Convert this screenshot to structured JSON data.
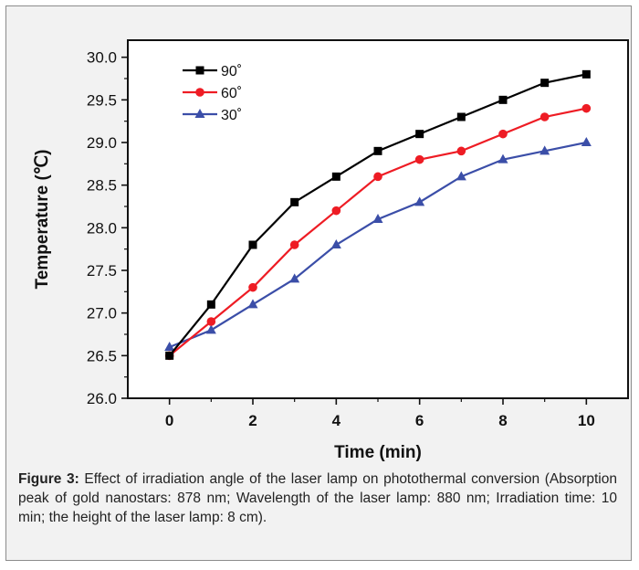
{
  "caption": {
    "label": "Figure 3:",
    "text": " Effect of irradiation angle of the laser lamp on photothermal conversion (Absorption peak of gold nanostars: 878 nm; Wavelength of the laser lamp: 880 nm; Irradiation time: 10 min; the height of the laser lamp: 8 cm)."
  },
  "chart_data": {
    "type": "line",
    "xlabel": "Time (min)",
    "ylabel": "Temperature (℃)",
    "xlim": [
      -1,
      11
    ],
    "ylim": [
      26.0,
      30.2
    ],
    "x_ticks": [
      0,
      2,
      4,
      6,
      8,
      10
    ],
    "y_ticks": [
      26.0,
      26.5,
      27.0,
      27.5,
      28.0,
      28.5,
      29.0,
      29.5,
      30.0
    ],
    "x_tick_labels": [
      "0",
      "2",
      "4",
      "6",
      "8",
      "10"
    ],
    "y_tick_labels": [
      "26.0",
      "26.5",
      "27.0",
      "27.5",
      "28.0",
      "28.5",
      "29.0",
      "29.5",
      "30.0"
    ],
    "legend_position": "top-left",
    "grid": false,
    "x": [
      0,
      1,
      2,
      3,
      4,
      5,
      6,
      7,
      8,
      9,
      10
    ],
    "series": [
      {
        "name": "90˚",
        "color": "#000000",
        "marker": "square",
        "values": [
          26.5,
          27.1,
          27.8,
          28.3,
          28.6,
          28.9,
          29.1,
          29.3,
          29.5,
          29.7,
          29.8
        ]
      },
      {
        "name": "60˚",
        "color": "#ee1c24",
        "marker": "circle",
        "values": [
          26.5,
          26.9,
          27.3,
          27.8,
          28.2,
          28.6,
          28.8,
          28.9,
          29.1,
          29.3,
          29.4
        ]
      },
      {
        "name": "30˚",
        "color": "#3b4ea8",
        "marker": "triangle",
        "values": [
          26.6,
          26.8,
          27.1,
          27.4,
          27.8,
          28.1,
          28.3,
          28.6,
          28.8,
          28.9,
          29.0
        ]
      }
    ]
  }
}
